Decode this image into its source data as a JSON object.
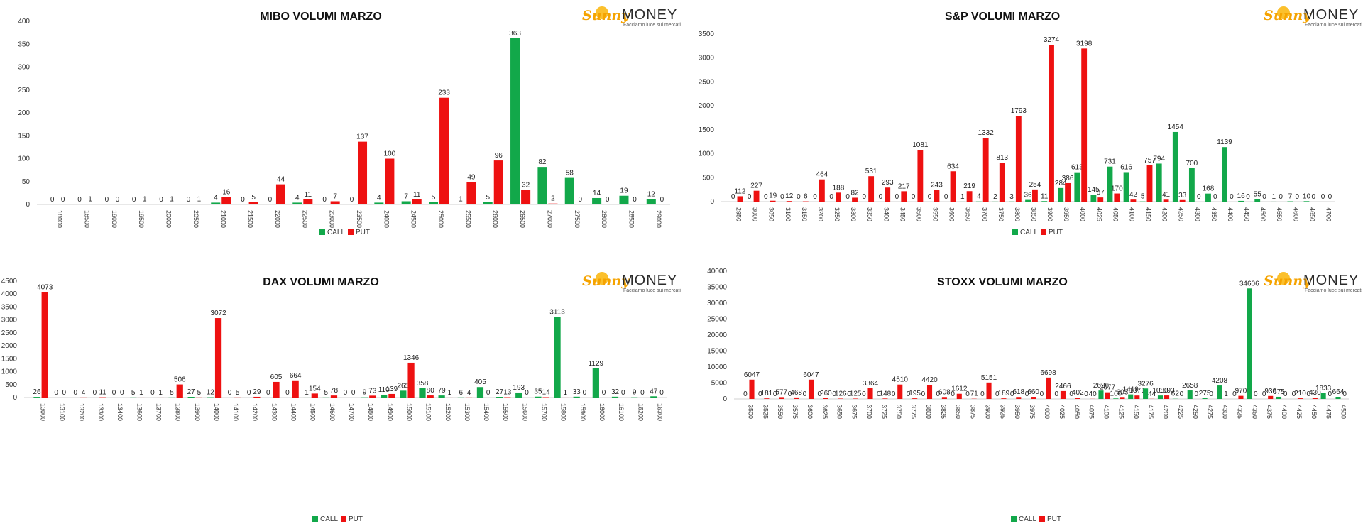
{
  "logo": {
    "word1": "Sunny",
    "word2": "MONEY",
    "tagline": "Facciamo luce sui mercati"
  },
  "colors": {
    "call": "#12a84a",
    "put": "#ee1111"
  },
  "chart_data": [
    {
      "type": "bar",
      "title": "MIBO VOLUMI MARZO",
      "categories": [
        "18000",
        "18500",
        "19000",
        "19500",
        "20000",
        "20500",
        "21000",
        "21500",
        "22000",
        "22500",
        "23000",
        "23500",
        "24000",
        "24500",
        "25000",
        "25500",
        "26000",
        "26500",
        "27000",
        "27500",
        "28000",
        "28500",
        "29000"
      ],
      "series": [
        {
          "name": "CALL",
          "values": [
            0,
            0,
            0,
            0,
            0,
            0,
            4,
            0,
            0,
            4,
            0,
            0,
            4,
            7,
            5,
            1,
            5,
            363,
            82,
            58,
            14,
            19,
            12
          ]
        },
        {
          "name": "PUT",
          "values": [
            0,
            1,
            0,
            1,
            1,
            1,
            16,
            5,
            44,
            11,
            7,
            137,
            100,
            11,
            233,
            49,
            96,
            32,
            2,
            0,
            0,
            0,
            0
          ]
        }
      ],
      "ylim": [
        0,
        400
      ],
      "yticks": [
        0,
        50,
        100,
        150,
        200,
        250,
        300,
        350,
        400
      ],
      "legend": "bottom",
      "grid": false
    },
    {
      "type": "bar",
      "title": "S&P VOLUMI MARZO",
      "categories": [
        "2950",
        "3000",
        "3050",
        "3100",
        "3150",
        "3200",
        "3250",
        "3300",
        "3350",
        "3400",
        "3450",
        "3500",
        "3550",
        "3600",
        "3650",
        "3700",
        "3750",
        "3800",
        "3850",
        "3900",
        "3950",
        "4000",
        "4025",
        "4050",
        "4100",
        "4150",
        "4200",
        "4250",
        "4300",
        "4350",
        "4400",
        "4450",
        "4500",
        "4550",
        "4600",
        "4650",
        "4700"
      ],
      "series": [
        {
          "name": "CALL",
          "values": [
            0,
            0,
            0,
            0,
            0,
            0,
            0,
            0,
            0,
            0,
            0,
            0,
            0,
            0,
            1,
            4,
            2,
            3,
            36,
            11,
            284,
            613,
            145,
            731,
            616,
            5,
            794,
            1454,
            700,
            168,
            1139,
            16,
            55,
            1,
            7,
            10,
            0
          ]
        },
        {
          "name": "PUT",
          "values": [
            112,
            227,
            19,
            12,
            6,
            464,
            188,
            82,
            531,
            293,
            217,
            1081,
            243,
            634,
            219,
            1332,
            813,
            1793,
            254,
            3274,
            386,
            3198,
            87,
            170,
            42,
            757,
            41,
            33,
            0,
            0,
            0,
            0,
            0,
            0,
            0,
            0,
            0
          ]
        }
      ],
      "ylim": [
        0,
        3500
      ],
      "yticks": [
        0,
        500,
        1000,
        1500,
        2000,
        2500,
        3000,
        3500
      ],
      "legend": "bottom",
      "grid": false
    },
    {
      "type": "bar",
      "title": "DAX VOLUMI MARZO",
      "categories": [
        "13000",
        "13100",
        "13200",
        "13300",
        "13400",
        "13600",
        "13700",
        "13800",
        "13900",
        "14000",
        "14100",
        "14200",
        "14300",
        "14400",
        "14500",
        "14600",
        "14700",
        "14800",
        "14900",
        "15000",
        "15100",
        "15200",
        "15300",
        "15400",
        "15500",
        "15600",
        "15700",
        "15800",
        "15900",
        "16000",
        "16100",
        "16200",
        "16300"
      ],
      "series": [
        {
          "name": "CALL",
          "values": [
            26,
            0,
            0,
            0,
            0,
            5,
            0,
            5,
            27,
            12,
            0,
            0,
            0,
            0,
            1,
            5,
            0,
            9,
            110,
            265,
            358,
            79,
            6,
            405,
            27,
            193,
            35,
            3113,
            33,
            1129,
            32,
            9,
            47
          ]
        },
        {
          "name": "PUT",
          "values": [
            4073,
            0,
            4,
            11,
            0,
            1,
            1,
            506,
            5,
            3072,
            5,
            29,
            605,
            664,
            154,
            78,
            0,
            73,
            139,
            1346,
            80,
            1,
            4,
            0,
            13,
            0,
            14,
            1,
            0,
            0,
            0,
            0,
            0
          ]
        }
      ],
      "ylim": [
        0,
        4500
      ],
      "yticks": [
        0,
        500,
        1000,
        1500,
        2000,
        2500,
        3000,
        3500,
        4000,
        4500
      ],
      "legend": "bottom",
      "grid": false
    },
    {
      "type": "bar",
      "title": "STOXX VOLUMI MARZO",
      "categories": [
        "3500",
        "3525",
        "3550",
        "3575",
        "3600",
        "3625",
        "3650",
        "3675",
        "3700",
        "3725",
        "3750",
        "3775",
        "3800",
        "3825",
        "3850",
        "3875",
        "3900",
        "3925",
        "3950",
        "3975",
        "4000",
        "4025",
        "4050",
        "4075",
        "4100",
        "4125",
        "4150",
        "4175",
        "4200",
        "4225",
        "4250",
        "4275",
        "4300",
        "4325",
        "4350",
        "4375",
        "4400",
        "4425",
        "4450",
        "4475",
        "4500"
      ],
      "series": [
        {
          "name": "CALL",
          "values": [
            0,
            0,
            0,
            0,
            0,
            0,
            0,
            0,
            0,
            0,
            0,
            0,
            0,
            0,
            0,
            0,
            0,
            0,
            0,
            0,
            0,
            0,
            0,
            0,
            2626,
            160,
            1419,
            3276,
            1080,
            62,
            2658,
            275,
            4208,
            0,
            34606,
            0,
            675,
            0,
            0,
            1833,
            664
          ]
        },
        {
          "name": "PUT",
          "values": [
            6047,
            181,
            577,
            468,
            6047,
            260,
            126,
            125,
            3364,
            148,
            4510,
            195,
            4420,
            608,
            1612,
            71,
            5151,
            189,
            618,
            660,
            6698,
            2466,
            402,
            40,
            2077,
            603,
            1071,
            44,
            1093,
            0,
            0,
            0,
            1,
            970,
            0,
            930,
            0,
            210,
            430,
            0,
            0
          ]
        }
      ],
      "ylim": [
        0,
        40000
      ],
      "yticks": [
        0,
        5000,
        10000,
        15000,
        20000,
        25000,
        30000,
        35000,
        40000
      ],
      "legend": "bottom",
      "grid": false
    }
  ]
}
